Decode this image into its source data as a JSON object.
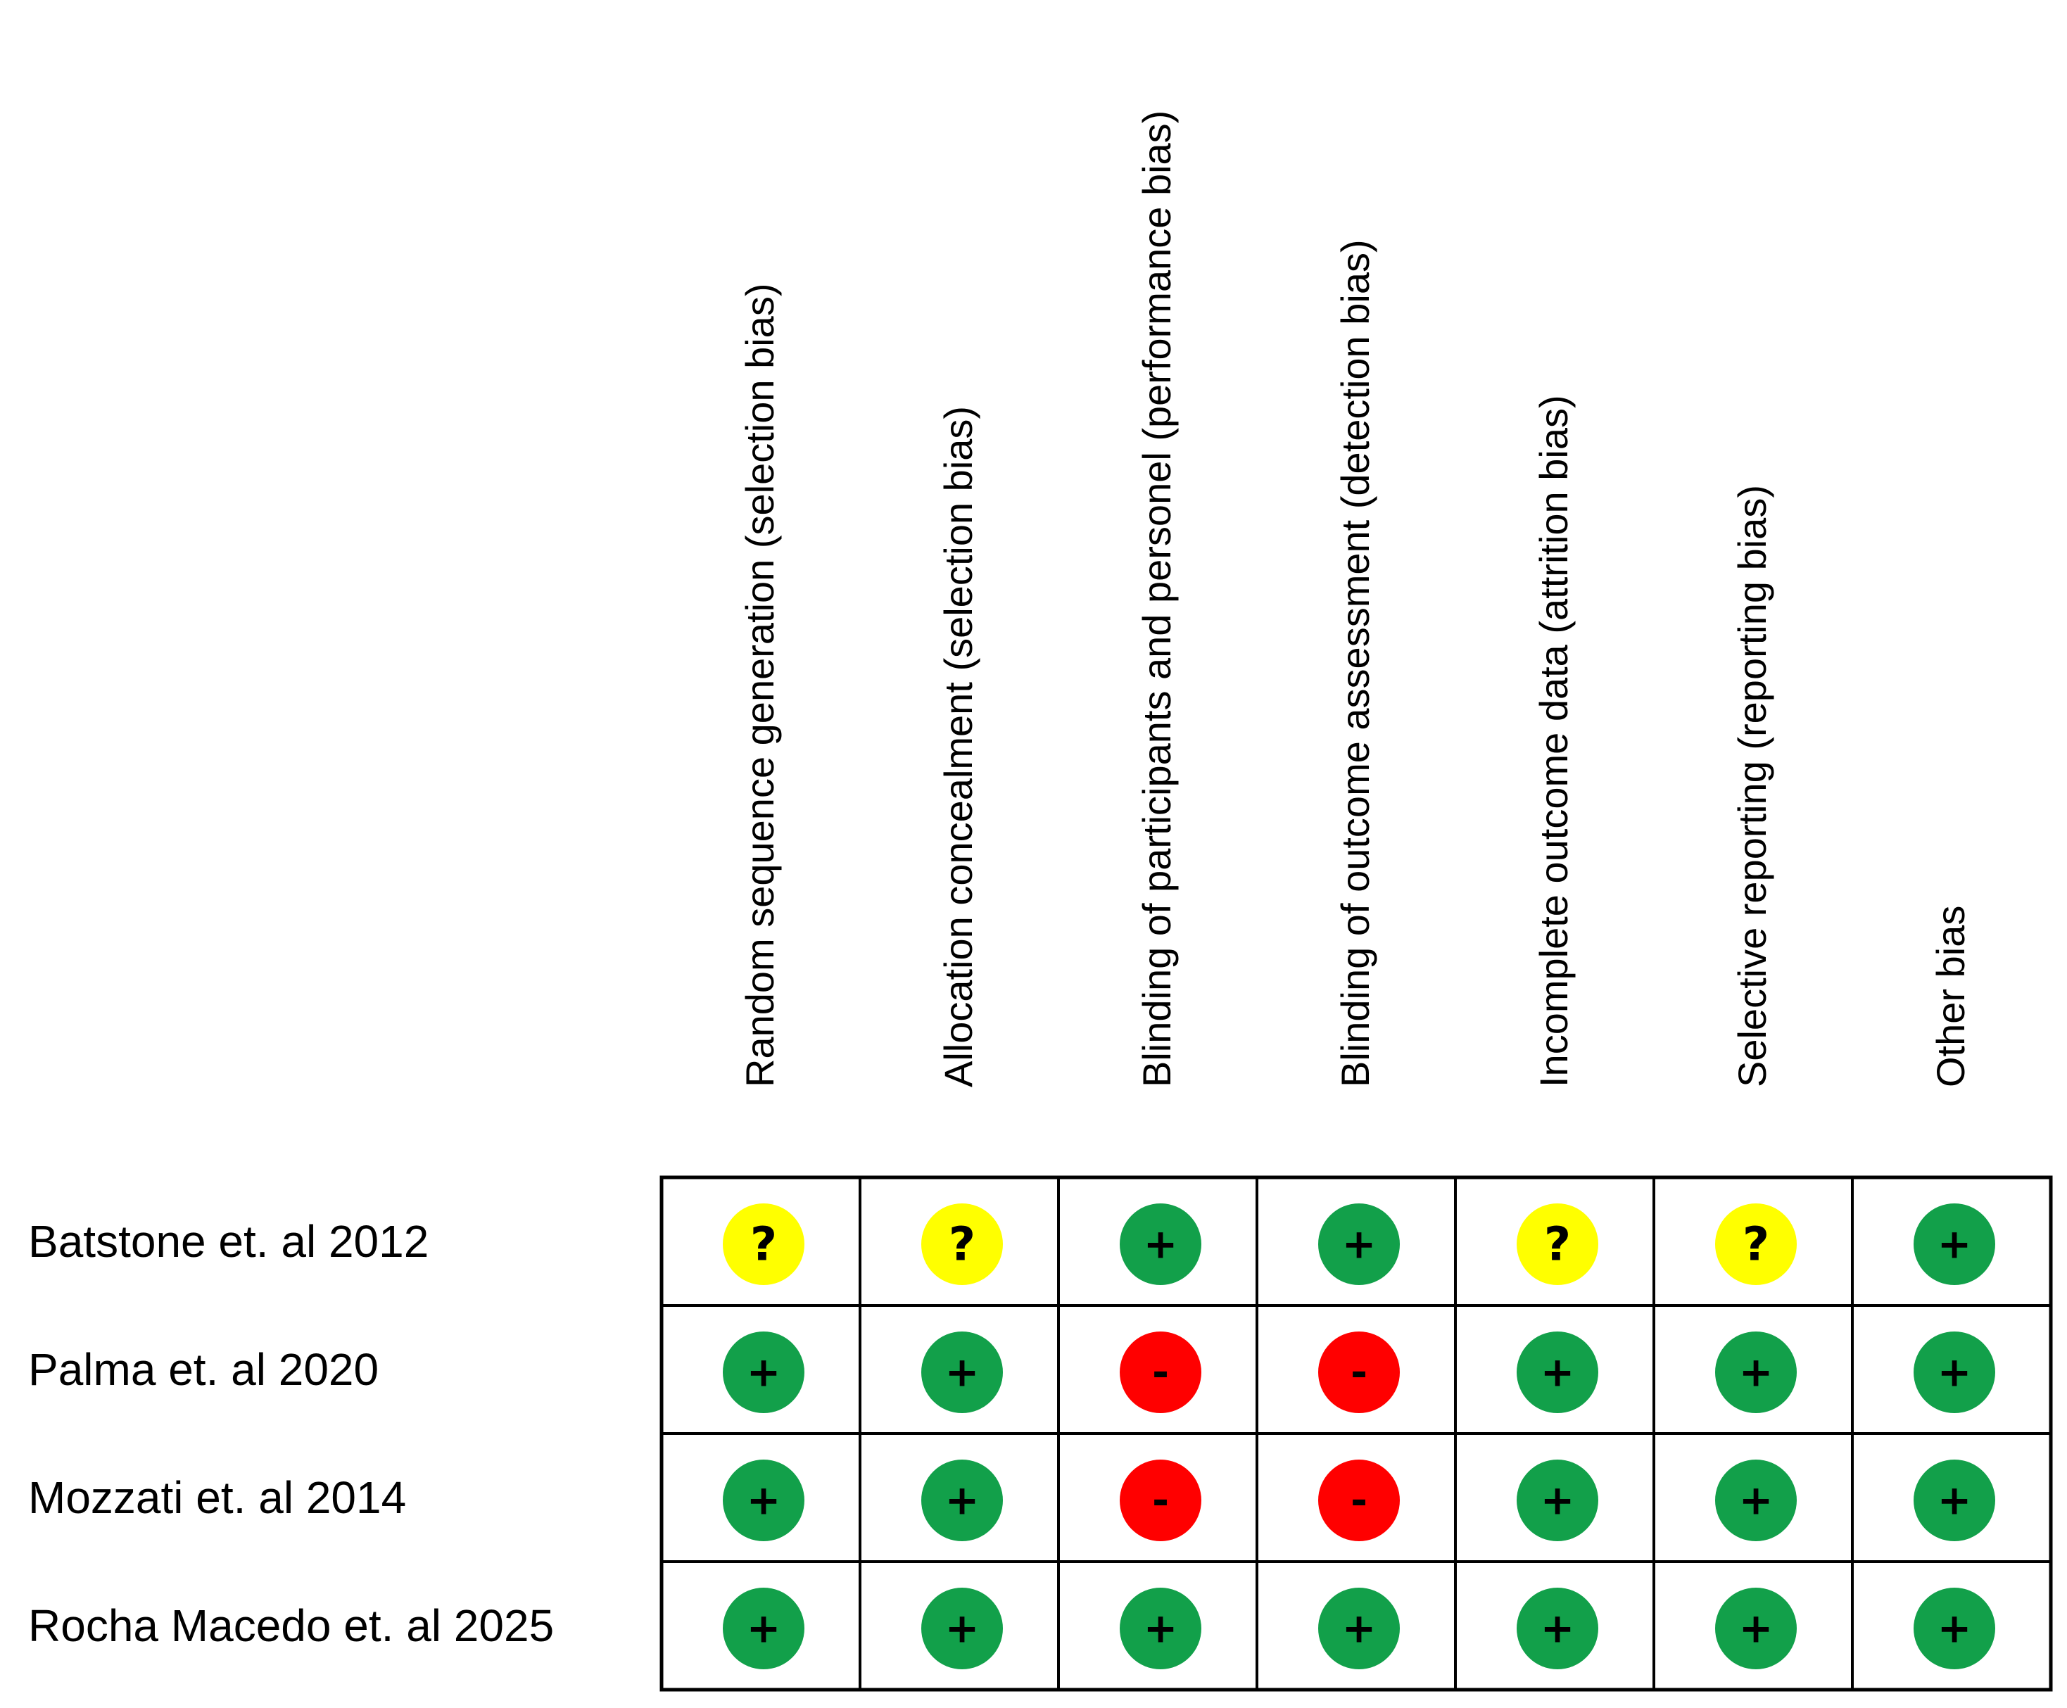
{
  "chart_data": {
    "type": "table",
    "title": "",
    "columns": [
      "Random sequence generation (selection bias)",
      "Allocation concealment (selection bias)",
      "Blinding of participants and personel (performance bias)",
      "Blinding of outcome assessment (detection bias)",
      "Incomplete outcome data (attrition bias)",
      "Selective reporting (reporting bias)",
      "Other bias"
    ],
    "rows": [
      {
        "study": "Batstone et. al 2012",
        "judgements": [
          "?",
          "?",
          "+",
          "+",
          "?",
          "?",
          "+"
        ]
      },
      {
        "study": "Palma et. al 2020",
        "judgements": [
          "+",
          "+",
          "-",
          "-",
          "+",
          "+",
          "+"
        ]
      },
      {
        "study": "Mozzati et. al 2014",
        "judgements": [
          "+",
          "+",
          "-",
          "-",
          "+",
          "+",
          "+"
        ]
      },
      {
        "study": "Rocha Macedo et. al 2025",
        "judgements": [
          "+",
          "+",
          "+",
          "+",
          "+",
          "+",
          "+"
        ]
      }
    ],
    "colors": {
      "+": "#12a04a",
      "-": "#ff0000",
      "?": "#ffff00"
    }
  }
}
